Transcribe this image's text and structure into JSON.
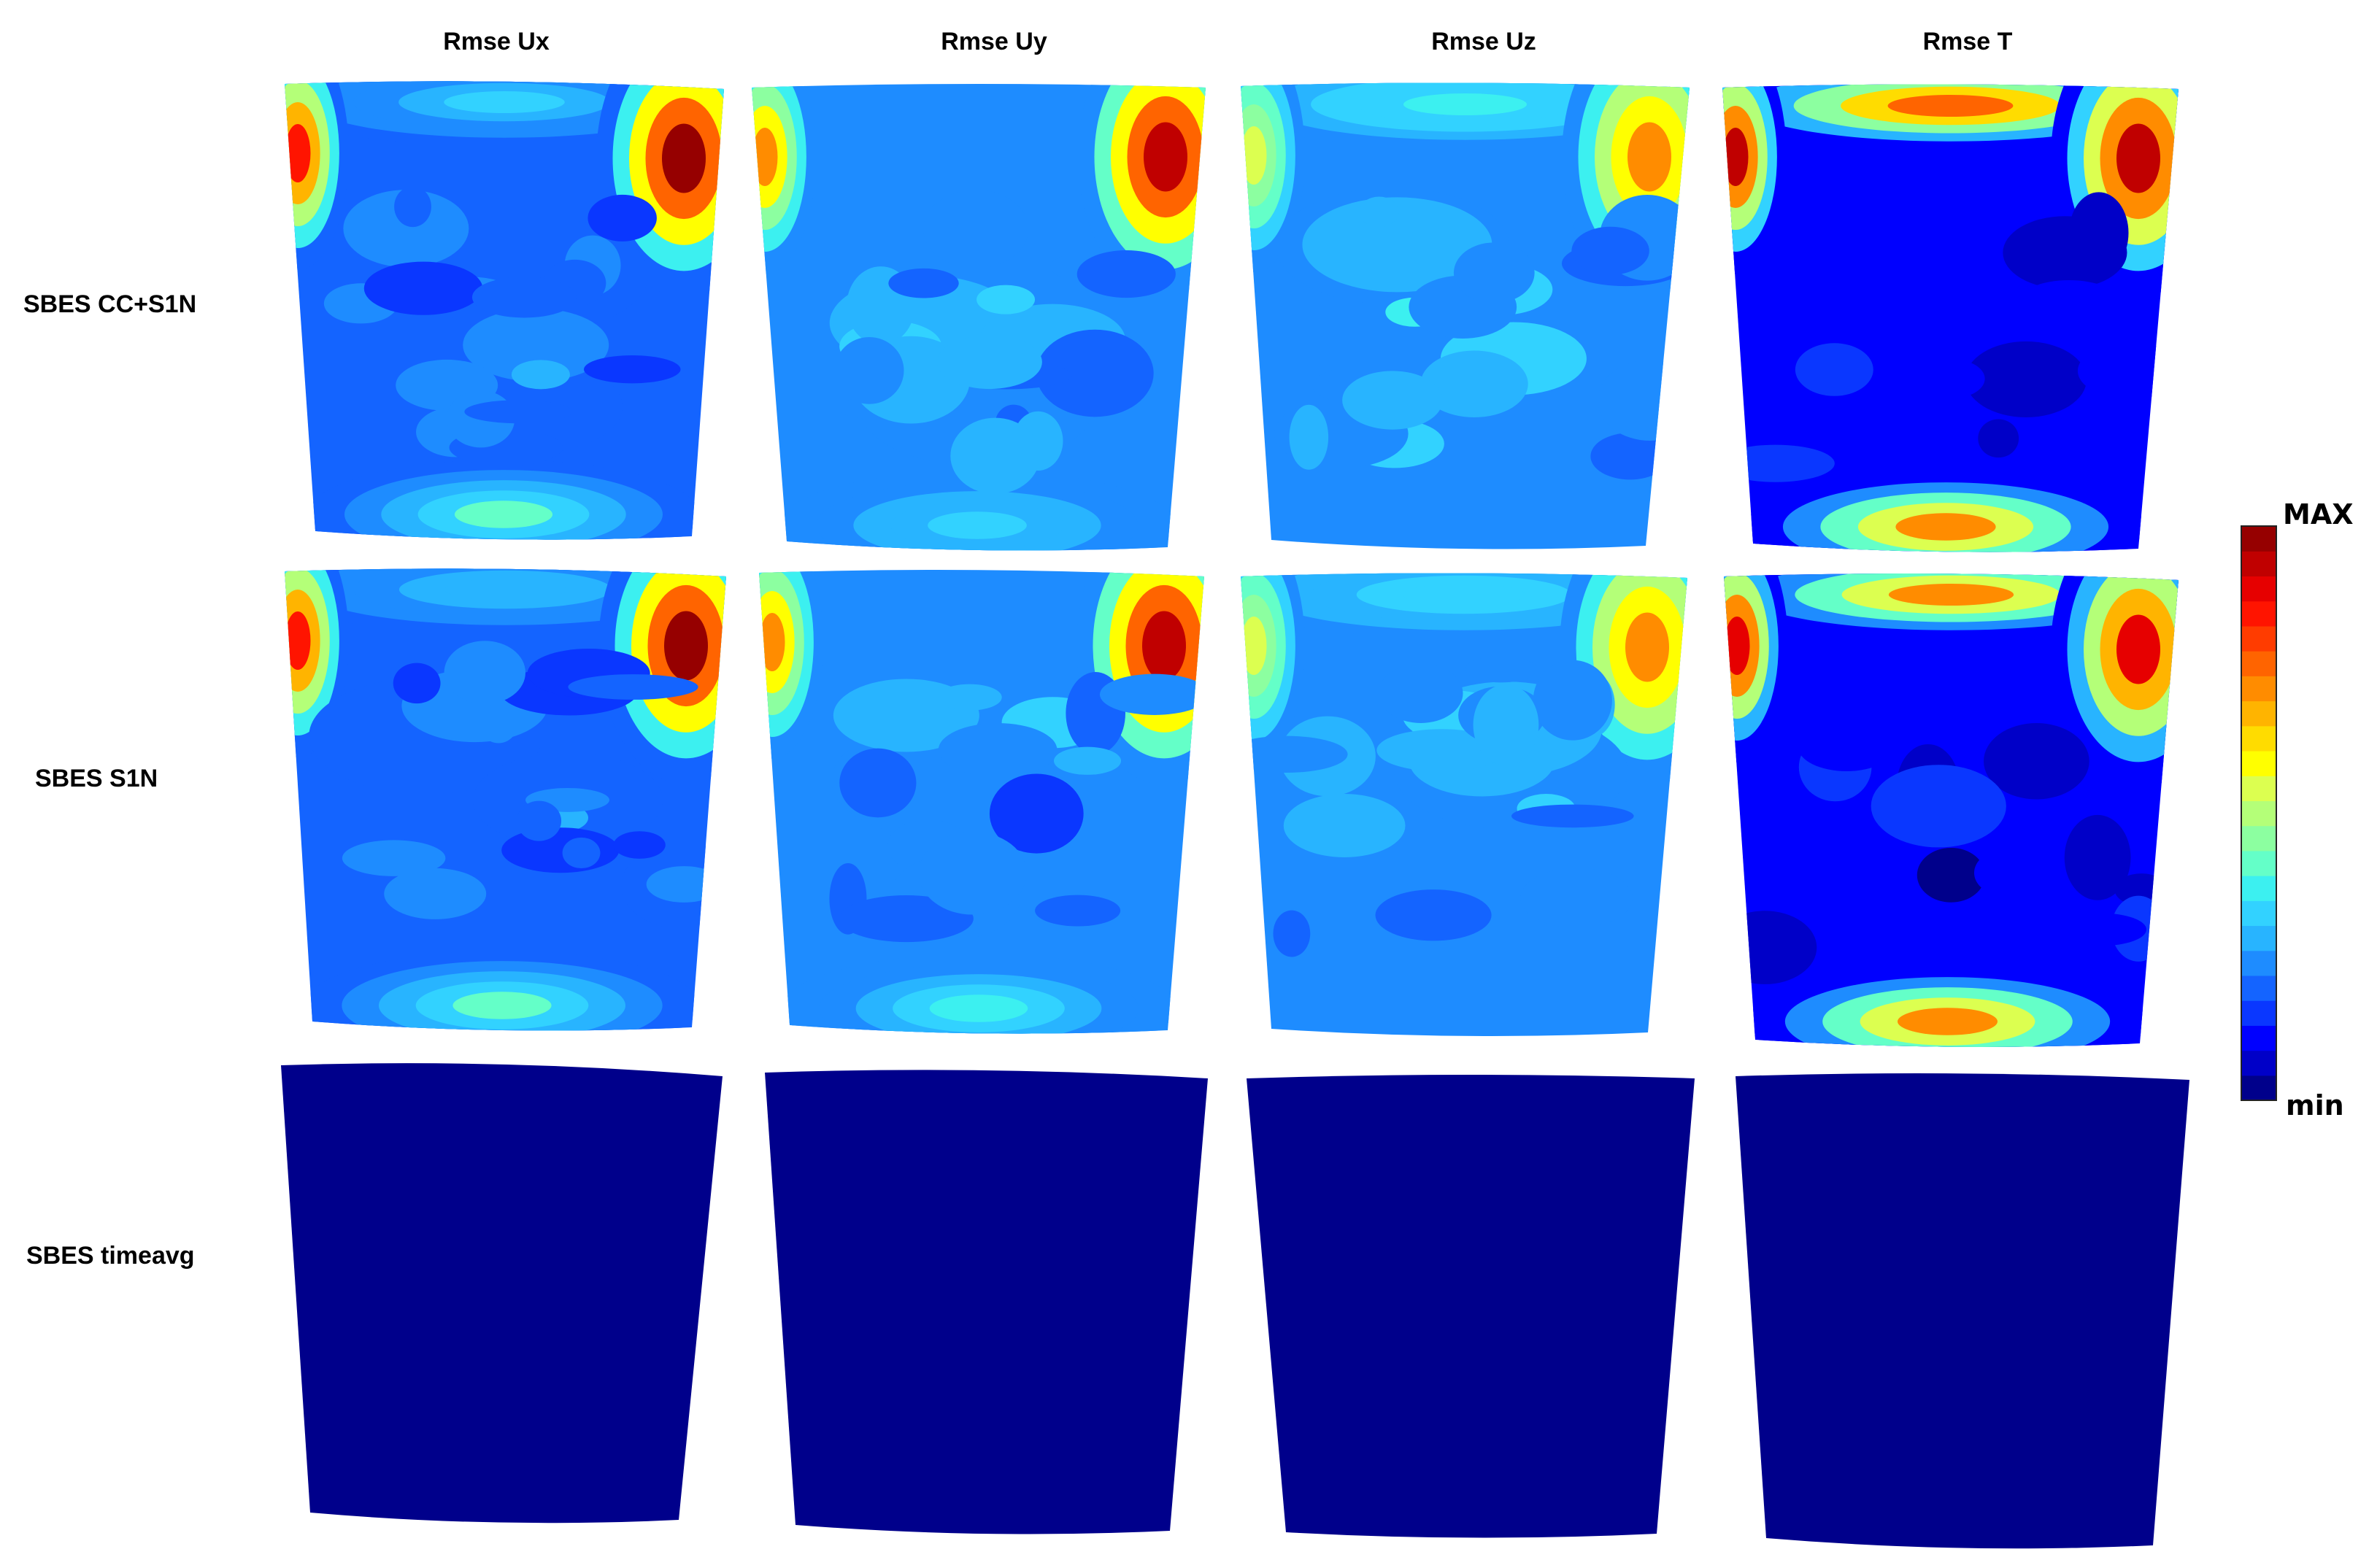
{
  "chart_data": {
    "type": "heatmap",
    "title": "",
    "columns": [
      "Rmse Ux",
      "Rmse Uy",
      "Rmse Uz",
      "Rmse T"
    ],
    "rows": [
      "SBES CC+S1N",
      "SBES S1N",
      "SBES timeavg"
    ],
    "colorbar": {
      "max_label": "MAX",
      "min_label": "min",
      "colormap": "jet",
      "levels": 23,
      "colors": [
        "#00008b",
        "#0000c8",
        "#0000ff",
        "#0a37ff",
        "#1464ff",
        "#1e8cff",
        "#28b4ff",
        "#32d2ff",
        "#3cf0f0",
        "#64ffc8",
        "#8cffa0",
        "#b4ff78",
        "#dcff50",
        "#ffff00",
        "#ffdc00",
        "#ffb400",
        "#ff8c00",
        "#ff6400",
        "#ff3c00",
        "#ff1400",
        "#e60000",
        "#c00000",
        "#960000"
      ]
    },
    "panels": [
      [
        {
          "base": 0.19,
          "features": [
            {
              "kind": "top-band",
              "v": 0.33
            },
            {
              "kind": "bottom-band",
              "v": 0.4
            },
            {
              "kind": "corner-tl",
              "v": 0.85
            },
            {
              "kind": "corner-tr",
              "v": 0.98
            },
            {
              "kind": "patch",
              "v": 0.28
            }
          ]
        },
        {
          "base": 0.24,
          "features": [
            {
              "kind": "bottom-band",
              "v": 0.32
            },
            {
              "kind": "corner-tl",
              "v": 0.7
            },
            {
              "kind": "corner-tr",
              "v": 0.93
            },
            {
              "kind": "patch",
              "v": 0.34
            }
          ]
        },
        {
          "base": 0.26,
          "features": [
            {
              "kind": "top-band",
              "v": 0.36
            },
            {
              "kind": "corner-tl",
              "v": 0.55
            },
            {
              "kind": "corner-tr",
              "v": 0.72
            },
            {
              "kind": "patch",
              "v": 0.36
            }
          ]
        },
        {
          "base": 0.1,
          "features": [
            {
              "kind": "top-band",
              "v": 0.78
            },
            {
              "kind": "bottom-band",
              "v": 0.72
            },
            {
              "kind": "corner-tl",
              "v": 0.93
            },
            {
              "kind": "corner-tr",
              "v": 0.95
            }
          ]
        }
      ],
      [
        {
          "base": 0.19,
          "features": [
            {
              "kind": "top-band",
              "v": 0.3
            },
            {
              "kind": "bottom-band",
              "v": 0.4
            },
            {
              "kind": "corner-tl",
              "v": 0.85
            },
            {
              "kind": "corner-tr",
              "v": 0.96
            },
            {
              "kind": "patch",
              "v": 0.27
            }
          ]
        },
        {
          "base": 0.23,
          "features": [
            {
              "kind": "bottom-band",
              "v": 0.35
            },
            {
              "kind": "corner-tl",
              "v": 0.72
            },
            {
              "kind": "corner-tr",
              "v": 0.93
            },
            {
              "kind": "patch",
              "v": 0.33
            }
          ]
        },
        {
          "base": 0.24,
          "features": [
            {
              "kind": "top-band",
              "v": 0.33
            },
            {
              "kind": "corner-tl",
              "v": 0.55
            },
            {
              "kind": "corner-tr",
              "v": 0.72
            },
            {
              "kind": "patch",
              "v": 0.34
            }
          ]
        },
        {
          "base": 0.1,
          "features": [
            {
              "kind": "top-band",
              "v": 0.7
            },
            {
              "kind": "bottom-band",
              "v": 0.7
            },
            {
              "kind": "corner-tl",
              "v": 0.9
            },
            {
              "kind": "corner-tr",
              "v": 0.88
            }
          ]
        }
      ],
      [
        {
          "base": 0.02,
          "features": []
        },
        {
          "base": 0.04,
          "features": []
        },
        {
          "base": 0.03,
          "features": []
        },
        {
          "base": 0.03,
          "features": []
        }
      ]
    ]
  }
}
